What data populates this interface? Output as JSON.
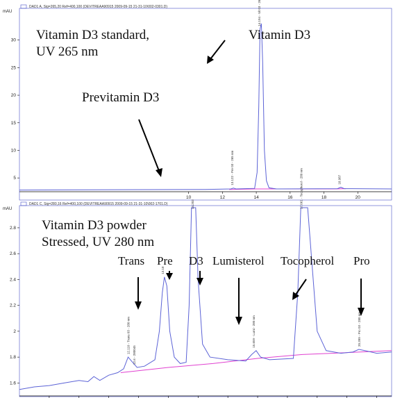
{
  "colors": {
    "trace": "#5b62d6",
    "baseline": "#e040d0",
    "axis": "#000000",
    "arrow": "#000000",
    "frame_header": "#4a52c8"
  },
  "chart_data": [
    {
      "type": "line",
      "header": "DAD1 A, Sig=265,20 Ref=400,100 (DEVITREAA90915 2009-09-15 21-31-10\\002-0301.D)",
      "ylabel": "mAU",
      "xlim": [
        0,
        22
      ],
      "ylim": [
        2.5,
        35
      ],
      "x_ticks": [
        "10",
        "12",
        "14",
        "16",
        "18",
        "20"
      ],
      "y_ticks": [
        "5",
        "10",
        "15",
        "20",
        "25",
        "30"
      ],
      "annotations": [
        {
          "id": "title1",
          "text": "Vitamin D3 standard,"
        },
        {
          "id": "title2",
          "text": "UV 265 nm"
        },
        {
          "id": "vitd3",
          "text": "Vitamin D3"
        },
        {
          "id": "previt",
          "text": "Previtamin D3"
        }
      ],
      "peak_labels": [
        {
          "id": "p1",
          "text": "13.122 - Pre 03 - 265 nm",
          "x": 12.65
        },
        {
          "id": "p2",
          "text": "14.194 - Vit 03 - 265 nm",
          "x": 14.25
        },
        {
          "id": "p3",
          "text": "18.987",
          "x": 18.98
        }
      ],
      "series": [
        {
          "values": [
            [
              0,
              2.8
            ],
            [
              11,
              2.9
            ],
            [
              12.5,
              3.0
            ],
            [
              12.65,
              3.15
            ],
            [
              12.8,
              3.0
            ],
            [
              13.9,
              3.1
            ],
            [
              14.05,
              6
            ],
            [
              14.15,
              18
            ],
            [
              14.22,
              32
            ],
            [
              14.3,
              33
            ],
            [
              14.38,
              26
            ],
            [
              14.48,
              10
            ],
            [
              14.6,
              4.5
            ],
            [
              14.75,
              3.2
            ],
            [
              15.2,
              3.0
            ],
            [
              18.8,
              3.05
            ],
            [
              19.0,
              3.3
            ],
            [
              19.2,
              3.05
            ],
            [
              22,
              3.0
            ]
          ]
        }
      ],
      "baseline": [
        [
          12.4,
          2.9
        ],
        [
          14.0,
          3.0
        ],
        [
          15.2,
          3.0
        ],
        [
          18.7,
          3.0
        ],
        [
          19.3,
          3.05
        ]
      ]
    },
    {
      "type": "line",
      "header": "DAD1 C, Sig=280,16 Ref=400,100 (DEVITREAA90915 2009-09-15 21-31-10\\002-1701.D)",
      "ylabel": "mAU",
      "xlim": [
        9,
        21.5
      ],
      "ylim": [
        1.5,
        2.95
      ],
      "y_ticks": [
        "1.6",
        "1.8",
        "2",
        "2.2",
        "2.4",
        "2.6",
        "2.8"
      ],
      "annotations": [
        {
          "id": "title1",
          "text": "Vitamin D3 powder"
        },
        {
          "id": "title2",
          "text": "Stressed, UV 280 nm"
        },
        {
          "id": "trans",
          "text": "Trans"
        },
        {
          "id": "pre",
          "text": "Pre"
        },
        {
          "id": "d3",
          "text": "D3"
        },
        {
          "id": "lumi",
          "text": "Lumisterol"
        },
        {
          "id": "toco",
          "text": "Tocopherol"
        },
        {
          "id": "pro",
          "text": "Pro"
        }
      ],
      "peak_labels": [
        {
          "id": "q1",
          "text": "12.110 - Trans 03 - 280 nm",
          "x": 12.7
        },
        {
          "id": "q2",
          "text": "12.6 - 280045",
          "x": 12.9
        },
        {
          "id": "q3",
          "text": "13.18",
          "x": 13.85
        },
        {
          "id": "q4",
          "text": "14.203",
          "x": 14.85
        },
        {
          "id": "q5",
          "text": "15.659 - Lumi - 280 nm",
          "x": 16.9
        },
        {
          "id": "q6",
          "text": "17.061 - Tocopherol - 280 nm",
          "x": 18.5
        },
        {
          "id": "q7",
          "text": "20.399 - Pro 03 - 280 nm",
          "x": 20.45
        }
      ],
      "series": [
        {
          "values": [
            [
              9,
              1.55
            ],
            [
              9.5,
              1.57
            ],
            [
              10,
              1.58
            ],
            [
              10.5,
              1.6
            ],
            [
              11,
              1.62
            ],
            [
              11.3,
              1.61
            ],
            [
              11.5,
              1.65
            ],
            [
              11.7,
              1.62
            ],
            [
              12,
              1.66
            ],
            [
              12.3,
              1.68
            ],
            [
              12.5,
              1.71
            ],
            [
              12.65,
              1.8
            ],
            [
              12.8,
              1.76
            ],
            [
              12.95,
              1.72
            ],
            [
              13.2,
              1.73
            ],
            [
              13.55,
              1.78
            ],
            [
              13.7,
              2.0
            ],
            [
              13.8,
              2.3
            ],
            [
              13.87,
              2.42
            ],
            [
              13.95,
              2.35
            ],
            [
              14.05,
              2.0
            ],
            [
              14.2,
              1.8
            ],
            [
              14.4,
              1.75
            ],
            [
              14.6,
              1.76
            ],
            [
              14.7,
              2.2
            ],
            [
              14.78,
              3.2
            ],
            [
              14.92,
              3.2
            ],
            [
              15.0,
              2.4
            ],
            [
              15.15,
              1.9
            ],
            [
              15.4,
              1.8
            ],
            [
              16.0,
              1.78
            ],
            [
              16.6,
              1.77
            ],
            [
              16.8,
              1.82
            ],
            [
              16.95,
              1.85
            ],
            [
              17.1,
              1.8
            ],
            [
              17.4,
              1.78
            ],
            [
              18.2,
              1.79
            ],
            [
              18.35,
              2.3
            ],
            [
              18.45,
              3.2
            ],
            [
              18.68,
              3.2
            ],
            [
              18.8,
              2.6
            ],
            [
              19.0,
              2.0
            ],
            [
              19.3,
              1.85
            ],
            [
              19.8,
              1.83
            ],
            [
              20.2,
              1.84
            ],
            [
              20.4,
              1.86
            ],
            [
              20.6,
              1.85
            ],
            [
              21.0,
              1.83
            ],
            [
              21.5,
              1.84
            ]
          ]
        }
      ],
      "baseline": [
        [
          12.4,
          1.68
        ],
        [
          14.0,
          1.72
        ],
        [
          15.5,
          1.75
        ],
        [
          17.0,
          1.79
        ],
        [
          18.5,
          1.82
        ],
        [
          19.5,
          1.83
        ],
        [
          21.5,
          1.85
        ]
      ]
    }
  ]
}
